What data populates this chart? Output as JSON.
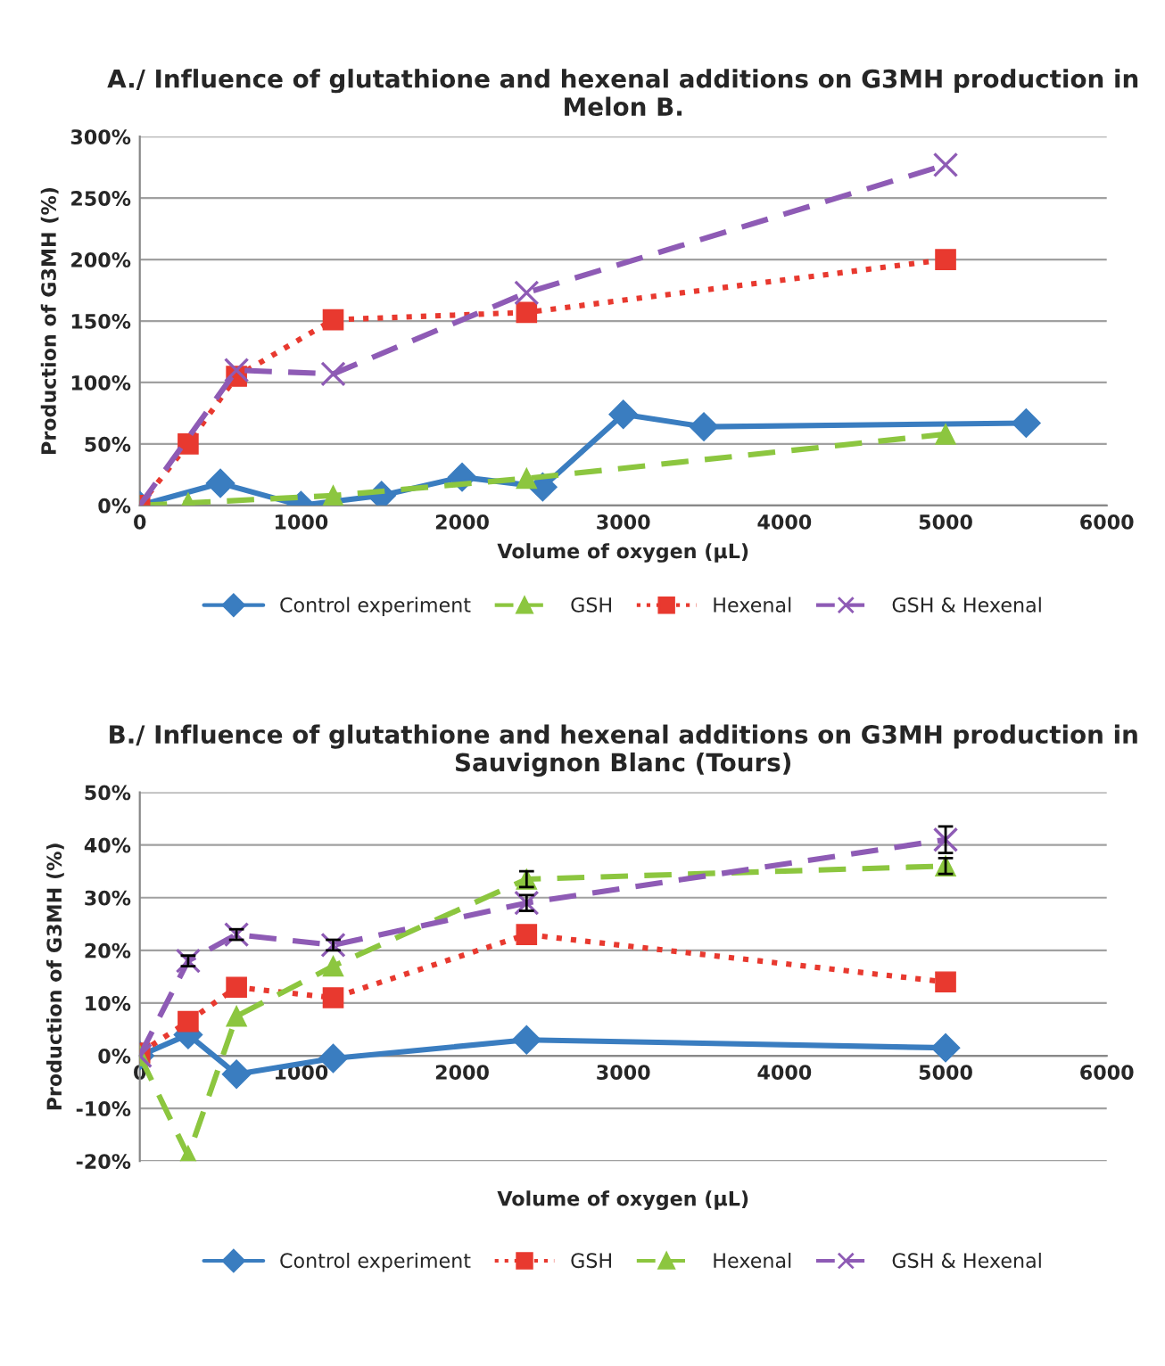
{
  "chart_data": [
    {
      "type": "line",
      "title": "A./ Influence of glutathione and hexenal additions on G3MH production in Melon B.",
      "xlabel": "Volume of oxygen (µL)",
      "ylabel": "Production of G3MH (%)",
      "xlim": [
        0,
        6000
      ],
      "xticks": [
        0,
        1000,
        2000,
        3000,
        4000,
        5000,
        6000
      ],
      "ylim": [
        0,
        300
      ],
      "yticks": [
        {
          "value": 0,
          "label": "0%"
        },
        {
          "value": 50,
          "label": "50%"
        },
        {
          "value": 100,
          "label": "100%"
        },
        {
          "value": 150,
          "label": "150%"
        },
        {
          "value": 200,
          "label": "200%"
        },
        {
          "value": 250,
          "label": "250%"
        },
        {
          "value": 300,
          "label": "300%"
        }
      ],
      "grid": "y",
      "legend": "bottom",
      "series": [
        {
          "name": "Control experiment",
          "color": "#3a7dc0",
          "marker": "diamond",
          "line_style": "solid",
          "x": [
            0,
            500,
            1000,
            1500,
            2000,
            2500,
            3000,
            3500,
            5500
          ],
          "values": [
            0,
            18,
            0,
            8,
            23,
            15,
            74,
            64,
            67
          ]
        },
        {
          "name": "GSH",
          "color": "#8cc63f",
          "marker": "triangle",
          "line_style": "dashed",
          "x": [
            0,
            300,
            1200,
            2400,
            5000
          ],
          "values": [
            0,
            2,
            8,
            22,
            58
          ]
        },
        {
          "name": "Hexenal",
          "color": "#e8392f",
          "marker": "square",
          "line_style": "dotted",
          "x": [
            0,
            300,
            600,
            1200,
            2400,
            5000
          ],
          "values": [
            0,
            50,
            105,
            151,
            157,
            200
          ]
        },
        {
          "name": "GSH & Hexenal",
          "color": "#8e5bb5",
          "marker": "cross",
          "line_style": "dashed",
          "x": [
            0,
            600,
            1200,
            2400,
            5000
          ],
          "values": [
            0,
            110,
            107,
            173,
            277
          ]
        }
      ]
    },
    {
      "type": "line",
      "title": "B./ Influence of glutathione and hexenal additions on G3MH production in Sauvignon Blanc (Tours)",
      "xlabel": "Volume of oxygen (µL)",
      "ylabel": "Production of G3MH (%)",
      "xlim": [
        0,
        6000
      ],
      "xticks": [
        0,
        1000,
        2000,
        3000,
        4000,
        5000,
        6000
      ],
      "ylim": [
        -20,
        50
      ],
      "yticks": [
        {
          "value": -20,
          "label": "-20%"
        },
        {
          "value": -10,
          "label": "-10%"
        },
        {
          "value": 0,
          "label": "0%"
        },
        {
          "value": 10,
          "label": "10%"
        },
        {
          "value": 20,
          "label": "20%"
        },
        {
          "value": 30,
          "label": "30%"
        },
        {
          "value": 40,
          "label": "40%"
        },
        {
          "value": 50,
          "label": "50%"
        }
      ],
      "grid": "y",
      "legend": "bottom",
      "series": [
        {
          "name": "Control experiment",
          "color": "#3a7dc0",
          "marker": "diamond",
          "line_style": "solid",
          "x": [
            0,
            300,
            600,
            1200,
            2400,
            5000
          ],
          "values": [
            0,
            4,
            -3.5,
            -0.5,
            3,
            1.5
          ]
        },
        {
          "name": "GSH",
          "color": "#e8392f",
          "marker": "square",
          "line_style": "dotted",
          "x": [
            0,
            300,
            600,
            1200,
            2400,
            5000
          ],
          "values": [
            0.5,
            6.5,
            13,
            11,
            23,
            14
          ]
        },
        {
          "name": "Hexenal",
          "color": "#8cc63f",
          "marker": "triangle",
          "line_style": "dashed",
          "x": [
            0,
            300,
            600,
            1200,
            2400,
            5000
          ],
          "values": [
            0,
            -19,
            7.5,
            17,
            33.5,
            36
          ],
          "errors": [
            null,
            null,
            null,
            null,
            1.5,
            1.5
          ]
        },
        {
          "name": "GSH & Hexenal",
          "color": "#8e5bb5",
          "marker": "cross",
          "line_style": "dashed",
          "x": [
            0,
            300,
            600,
            1200,
            2400,
            5000
          ],
          "values": [
            0,
            18,
            23,
            21,
            29,
            41
          ],
          "errors": [
            null,
            1,
            1,
            1,
            1.5,
            2.5
          ]
        }
      ]
    }
  ]
}
